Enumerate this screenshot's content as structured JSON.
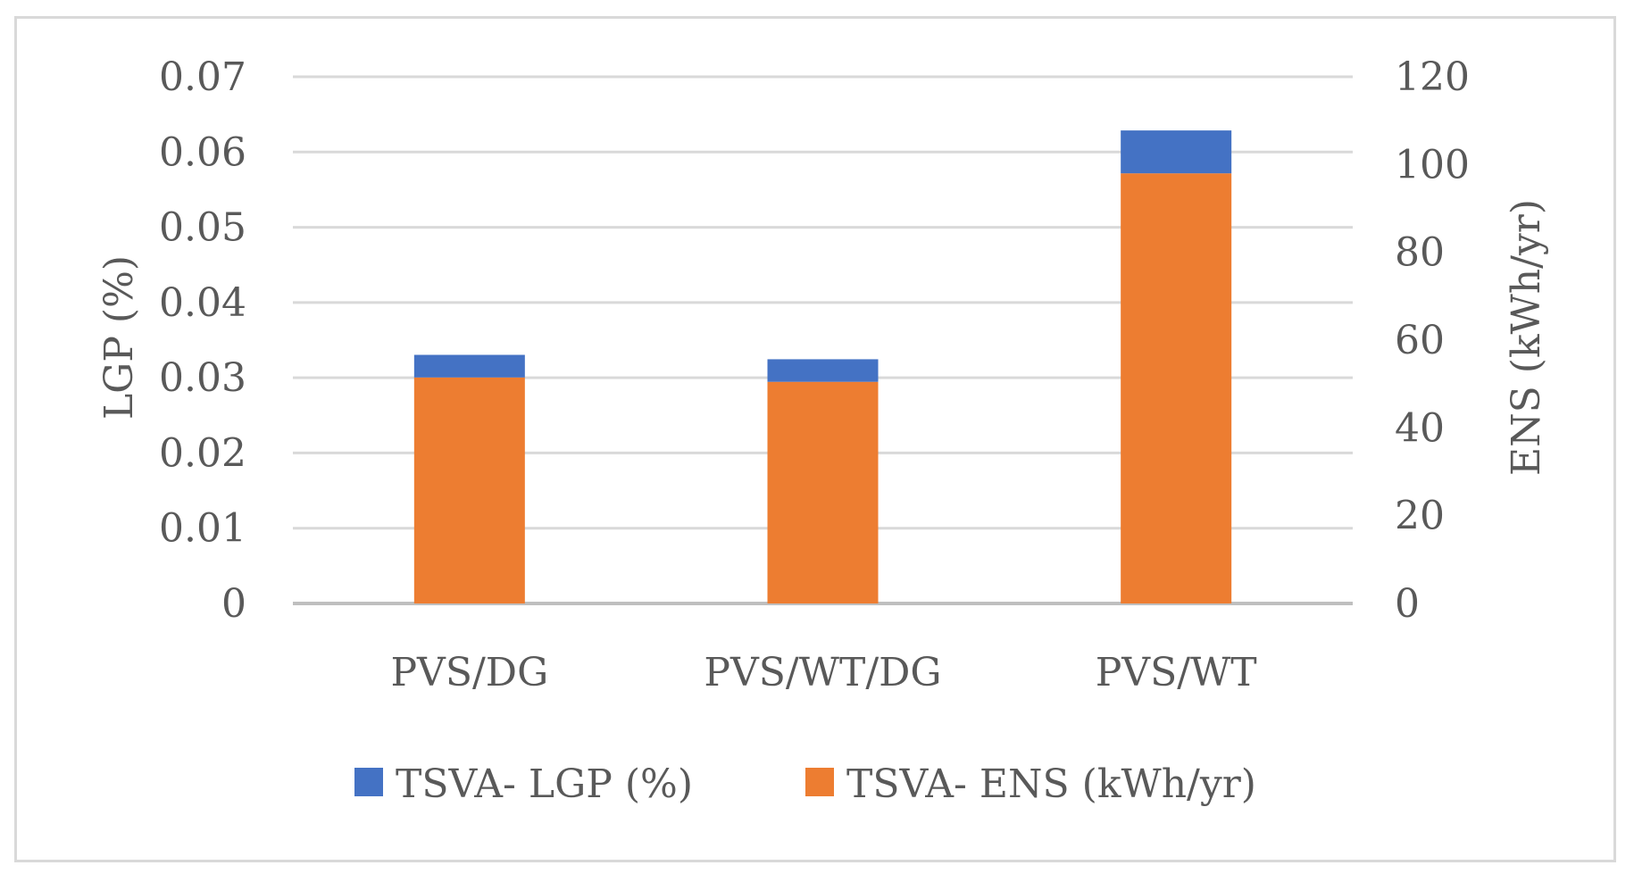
{
  "chart_data": {
    "type": "bar",
    "stacked": true,
    "categories": [
      "PVS/DG",
      "PVS/WT/DG",
      "PVS/WT"
    ],
    "series": [
      {
        "name": "TSVA- ENS (kWh/yr)",
        "axis": "right",
        "color": "#ED7D31",
        "values": [
          51.5,
          50.5,
          98
        ]
      },
      {
        "name": "TSVA- LGP (%)",
        "axis": "left",
        "color": "#4472C4",
        "values": [
          0.003,
          0.003,
          0.0057
        ]
      }
    ],
    "y_left": {
      "label": "LGP (%)",
      "lim": [
        0,
        0.07
      ],
      "ticks": [
        0,
        0.01,
        0.02,
        0.03,
        0.04,
        0.05,
        0.06,
        0.07
      ],
      "tick_labels": [
        "0",
        "0.01",
        "0.02",
        "0.03",
        "0.04",
        "0.05",
        "0.06",
        "0.07"
      ]
    },
    "y_right": {
      "label": "ENS (kWh/yr)",
      "lim": [
        0,
        120
      ],
      "ticks": [
        0,
        20,
        40,
        60,
        80,
        100,
        120
      ],
      "tick_labels": [
        "0",
        "20",
        "40",
        "60",
        "80",
        "100",
        "120"
      ]
    },
    "legend": {
      "position": "bottom",
      "entries": [
        {
          "label": "TSVA- LGP (%)",
          "color": "#4472C4"
        },
        {
          "label": "TSVA- ENS (kWh/yr)",
          "color": "#ED7D31"
        }
      ]
    },
    "grid": true
  }
}
